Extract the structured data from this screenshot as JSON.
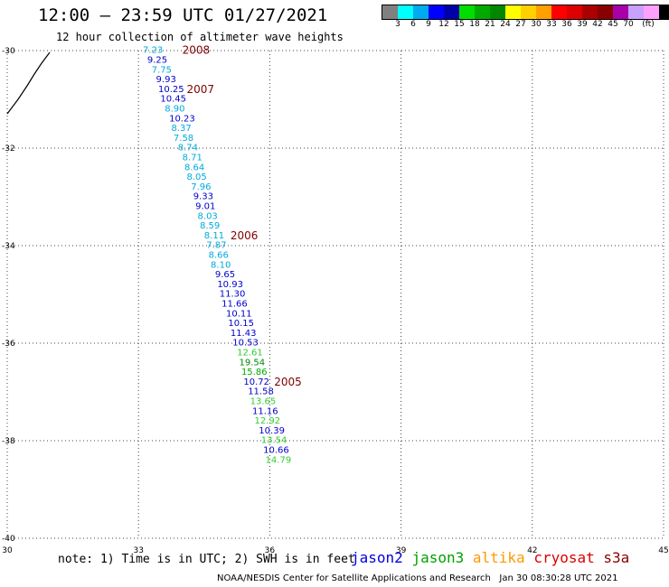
{
  "title": "12:00 – 23:59 UTC 01/27/2021",
  "subtitle": "12 hour collection of altimeter wave heights",
  "colorbar": {
    "unit": "(ft)",
    "colors": [
      "#808080",
      "#00ffff",
      "#00aaee",
      "#0000ff",
      "#0000aa",
      "#00dd00",
      "#00aa00",
      "#008800",
      "#ffff00",
      "#ffd000",
      "#ffa000",
      "#ff0000",
      "#dd0000",
      "#aa0000",
      "#880000",
      "#aa00aa",
      "#c8a0ff",
      "#ffa0ff",
      "#000000"
    ],
    "labels": [
      "3",
      "6",
      "9",
      "12",
      "15",
      "18",
      "21",
      "24",
      "27",
      "30",
      "33",
      "36",
      "39",
      "42",
      "45",
      "70"
    ]
  },
  "map": {
    "lon_range": [
      30,
      45
    ],
    "lat_range": [
      -40,
      -30
    ],
    "x_ticks": [
      "30",
      "33",
      "36",
      "39",
      "42",
      "45"
    ],
    "y_ticks": [
      "-30",
      "-32",
      "-34",
      "-36",
      "-38",
      "-40"
    ],
    "grid": true
  },
  "chart_data": {
    "type": "scatter",
    "xlabel": "",
    "ylabel": "",
    "unit": "ft",
    "points": [
      {
        "lon": 33.1,
        "lat": -30.05,
        "swh": "7.23",
        "sat": "jason2"
      },
      {
        "lon": 33.2,
        "lat": -30.25,
        "swh": "9.25",
        "sat": "jason2"
      },
      {
        "lon": 33.3,
        "lat": -30.45,
        "swh": "7.75",
        "sat": "jason2"
      },
      {
        "lon": 33.4,
        "lat": -30.65,
        "swh": "9.93",
        "sat": "jason2"
      },
      {
        "lon": 33.45,
        "lat": -30.85,
        "swh": "10.25",
        "sat": "jason2"
      },
      {
        "lon": 33.5,
        "lat": -31.05,
        "swh": "10.45",
        "sat": "jason2"
      },
      {
        "lon": 33.6,
        "lat": -31.25,
        "swh": "8.90",
        "sat": "jason2"
      },
      {
        "lon": 33.7,
        "lat": -31.45,
        "swh": "10.23",
        "sat": "jason2"
      },
      {
        "lon": 33.75,
        "lat": -31.65,
        "swh": "8.37",
        "sat": "jason2"
      },
      {
        "lon": 33.8,
        "lat": -31.85,
        "swh": "7.58",
        "sat": "jason2"
      },
      {
        "lon": 33.9,
        "lat": -32.05,
        "swh": "8.74",
        "sat": "jason2"
      },
      {
        "lon": 34.0,
        "lat": -32.25,
        "swh": "8.71",
        "sat": "jason2"
      },
      {
        "lon": 34.05,
        "lat": -32.45,
        "swh": "8.64",
        "sat": "jason2"
      },
      {
        "lon": 34.1,
        "lat": -32.65,
        "swh": "8.05",
        "sat": "jason2"
      },
      {
        "lon": 34.2,
        "lat": -32.85,
        "swh": "7.96",
        "sat": "jason2"
      },
      {
        "lon": 34.25,
        "lat": -33.05,
        "swh": "9.33",
        "sat": "jason2"
      },
      {
        "lon": 34.3,
        "lat": -33.25,
        "swh": "9.01",
        "sat": "jason2"
      },
      {
        "lon": 34.35,
        "lat": -33.45,
        "swh": "8.03",
        "sat": "jason2"
      },
      {
        "lon": 34.4,
        "lat": -33.65,
        "swh": "8.59",
        "sat": "jason2"
      },
      {
        "lon": 34.5,
        "lat": -33.85,
        "swh": "8.11",
        "sat": "jason2"
      },
      {
        "lon": 34.55,
        "lat": -34.05,
        "swh": "7.87",
        "sat": "jason2"
      },
      {
        "lon": 34.6,
        "lat": -34.25,
        "swh": "8.66",
        "sat": "jason2"
      },
      {
        "lon": 34.65,
        "lat": -34.45,
        "swh": "8.10",
        "sat": "jason2"
      },
      {
        "lon": 34.75,
        "lat": -34.65,
        "swh": "9.65",
        "sat": "jason2"
      },
      {
        "lon": 34.8,
        "lat": -34.85,
        "swh": "10.93",
        "sat": "jason2"
      },
      {
        "lon": 34.85,
        "lat": -35.05,
        "swh": "11.30",
        "sat": "jason2"
      },
      {
        "lon": 34.9,
        "lat": -35.25,
        "swh": "11.66",
        "sat": "jason2"
      },
      {
        "lon": 35.0,
        "lat": -35.45,
        "swh": "10.11",
        "sat": "jason2"
      },
      {
        "lon": 35.05,
        "lat": -35.65,
        "swh": "10.15",
        "sat": "jason2"
      },
      {
        "lon": 35.1,
        "lat": -35.85,
        "swh": "11.43",
        "sat": "jason2"
      },
      {
        "lon": 35.15,
        "lat": -36.05,
        "swh": "10.53",
        "sat": "jason2"
      },
      {
        "lon": 35.25,
        "lat": -36.25,
        "swh": "12.61",
        "sat": "jason2"
      },
      {
        "lon": 35.3,
        "lat": -36.45,
        "swh": "19.54",
        "sat": "jason2"
      },
      {
        "lon": 35.35,
        "lat": -36.65,
        "swh": "15.86",
        "sat": "jason2"
      },
      {
        "lon": 35.4,
        "lat": -36.85,
        "swh": "10.72",
        "sat": "jason2"
      },
      {
        "lon": 35.5,
        "lat": -37.05,
        "swh": "11.58",
        "sat": "jason2"
      },
      {
        "lon": 35.55,
        "lat": -37.25,
        "swh": "13.65",
        "sat": "jason2"
      },
      {
        "lon": 35.6,
        "lat": -37.45,
        "swh": "11.16",
        "sat": "jason2"
      },
      {
        "lon": 35.65,
        "lat": -37.65,
        "swh": "12.92",
        "sat": "jason2"
      },
      {
        "lon": 35.75,
        "lat": -37.85,
        "swh": "10.39",
        "sat": "jason2"
      },
      {
        "lon": 35.8,
        "lat": -38.05,
        "swh": "13.54",
        "sat": "jason2"
      },
      {
        "lon": 35.85,
        "lat": -38.25,
        "swh": "10.66",
        "sat": "jason2"
      },
      {
        "lon": 35.9,
        "lat": -38.45,
        "swh": "14.79",
        "sat": "jason2"
      }
    ],
    "time_labels": [
      {
        "text": "2008",
        "lon": 34.0,
        "lat": -30.05
      },
      {
        "text": "2007",
        "lon": 34.1,
        "lat": -30.85
      },
      {
        "text": "2006",
        "lon": 35.1,
        "lat": -33.85
      },
      {
        "text": "2005",
        "lon": 36.1,
        "lat": -36.85
      }
    ],
    "time_label_color": "#800000"
  },
  "note": "note: 1) Time is in UTC; 2) SWH is in feet",
  "satellites": [
    {
      "name": "jason2",
      "color": "#0000dd"
    },
    {
      "name": "jason3",
      "color": "#00a000"
    },
    {
      "name": "altika",
      "color": "#ff9900"
    },
    {
      "name": "cryosat",
      "color": "#dd0000"
    },
    {
      "name": "s3a",
      "color": "#880000"
    }
  ],
  "footer": "NOAA/NESDIS Center for Satellite Applications and Research   Jan 30 08:30:28 UTC 2021"
}
